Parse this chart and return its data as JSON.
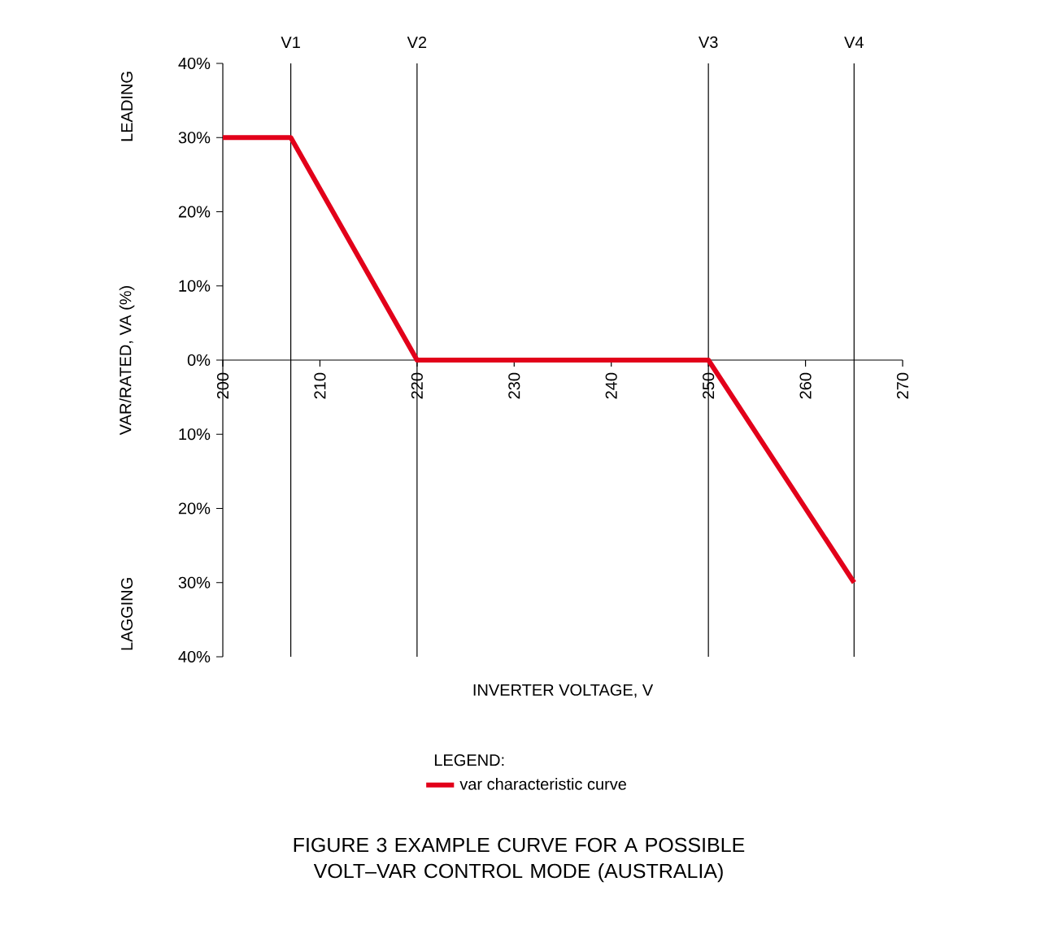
{
  "chart_data": {
    "type": "line",
    "title": "FIGURE  3   EXAMPLE CURVE FOR A POSSIBLE VOLT–VAR CONTROL MODE (AUSTRALIA)",
    "xlabel": "INVERTER VOLTAGE, V",
    "ylabel": "VAR/RATED,  VA (%)",
    "legend_title": "LEGEND:",
    "annotations": [
      "LEADING",
      "LAGGING"
    ],
    "series": [
      {
        "name": "var characteristic curve",
        "color": "#e2001a",
        "x": [
          200,
          207,
          220,
          250,
          265
        ],
        "values": [
          30,
          30,
          0,
          0,
          -30
        ]
      }
    ],
    "xlim": [
      200,
      270
    ],
    "xticks": [
      200,
      210,
      220,
      230,
      240,
      250,
      260,
      270
    ],
    "ylim": [
      -40,
      40
    ],
    "yticks": [
      {
        "value": -40,
        "label": "40%"
      },
      {
        "value": -30,
        "label": "30%"
      },
      {
        "value": -20,
        "label": "20%"
      },
      {
        "value": -10,
        "label": "10%"
      },
      {
        "value": 0,
        "label": "0%"
      },
      {
        "value": 10,
        "label": "10%"
      },
      {
        "value": 20,
        "label": "20%"
      },
      {
        "value": 30,
        "label": "30%"
      },
      {
        "value": 40,
        "label": "40%"
      }
    ],
    "ref_lines": [
      {
        "axis": "x",
        "value": 207,
        "label": "V1"
      },
      {
        "axis": "x",
        "value": 220,
        "label": "V2"
      },
      {
        "axis": "x",
        "value": 250,
        "label": "V3"
      },
      {
        "axis": "x",
        "value": 265,
        "label": "V4"
      }
    ],
    "legend": "bottom",
    "line_style": "solid",
    "grid": false
  }
}
